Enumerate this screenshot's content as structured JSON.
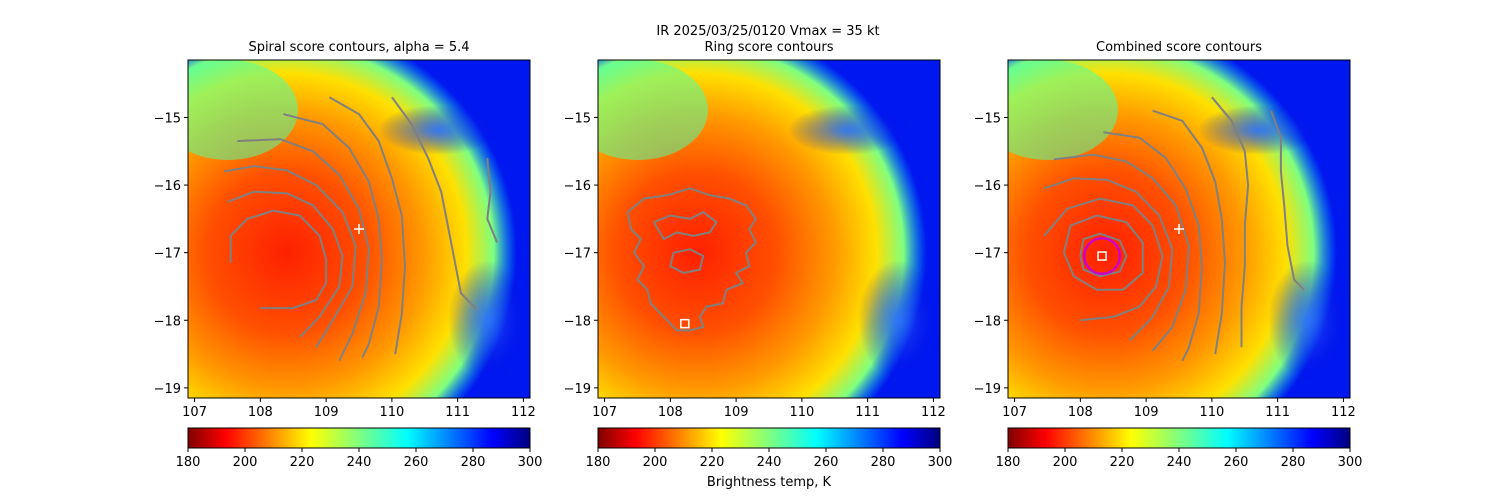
{
  "suptitle_line1": "IR  2025/03/25/0120    Vmax = 35 kt",
  "colorbar_label": "Brightness temp, K",
  "colormap": "jet_r",
  "contour_color": "#808080",
  "marker_colors": {
    "center_square": "#ffffff",
    "ring_circle": "#cc00cc",
    "plus": "#ffffff"
  },
  "chart_data": [
    {
      "type": "heatmap",
      "title": "Spiral score contours, alpha =  5.4",
      "xlim": [
        106.9,
        112.1
      ],
      "ylim": [
        -19.15,
        -14.15
      ],
      "xticks": [
        "107",
        "108",
        "109",
        "110",
        "111",
        "112"
      ],
      "yticks": [
        "−15",
        "−16",
        "−17",
        "−18",
        "−19"
      ],
      "xtick_values": [
        107,
        108,
        109,
        110,
        111,
        112
      ],
      "ytick_values": [
        -15,
        -16,
        -17,
        -18,
        -19
      ],
      "colorbar": {
        "ticks": [
          "180",
          "200",
          "220",
          "240",
          "260",
          "280",
          "300"
        ],
        "range": [
          180,
          300
        ]
      },
      "markers": [
        {
          "kind": "plus",
          "lon": 109.5,
          "lat": -16.65
        }
      ],
      "contours": [
        [
          [
            107.55,
            -17.15
          ],
          [
            107.55,
            -16.75
          ],
          [
            107.8,
            -16.5
          ],
          [
            108.2,
            -16.38
          ],
          [
            108.6,
            -16.45
          ],
          [
            108.9,
            -16.75
          ],
          [
            109.0,
            -17.1
          ],
          [
            109.0,
            -17.45
          ],
          [
            108.85,
            -17.7
          ],
          [
            108.5,
            -17.82
          ],
          [
            108.0,
            -17.82
          ]
        ],
        [
          [
            107.5,
            -16.25
          ],
          [
            107.9,
            -16.1
          ],
          [
            108.4,
            -16.12
          ],
          [
            108.8,
            -16.3
          ],
          [
            109.1,
            -16.65
          ],
          [
            109.25,
            -17.05
          ],
          [
            109.2,
            -17.5
          ],
          [
            108.9,
            -17.95
          ],
          [
            108.6,
            -18.25
          ]
        ],
        [
          [
            107.45,
            -15.8
          ],
          [
            107.9,
            -15.72
          ],
          [
            108.4,
            -15.78
          ],
          [
            108.85,
            -16.0
          ],
          [
            109.25,
            -16.4
          ],
          [
            109.45,
            -16.9
          ],
          [
            109.4,
            -17.5
          ],
          [
            109.1,
            -18.0
          ],
          [
            108.85,
            -18.4
          ]
        ],
        [
          [
            107.65,
            -15.35
          ],
          [
            108.3,
            -15.32
          ],
          [
            108.8,
            -15.5
          ],
          [
            109.2,
            -15.85
          ],
          [
            109.5,
            -16.35
          ],
          [
            109.65,
            -16.95
          ],
          [
            109.6,
            -17.6
          ],
          [
            109.4,
            -18.2
          ],
          [
            109.2,
            -18.6
          ]
        ],
        [
          [
            108.35,
            -14.95
          ],
          [
            108.95,
            -15.1
          ],
          [
            109.35,
            -15.45
          ],
          [
            109.65,
            -15.95
          ],
          [
            109.8,
            -16.5
          ],
          [
            109.85,
            -17.1
          ],
          [
            109.8,
            -17.8
          ],
          [
            109.65,
            -18.35
          ],
          [
            109.55,
            -18.55
          ]
        ],
        [
          [
            109.05,
            -14.7
          ],
          [
            109.5,
            -14.95
          ],
          [
            109.8,
            -15.35
          ],
          [
            110.0,
            -15.9
          ],
          [
            110.15,
            -16.45
          ],
          [
            110.2,
            -17.2
          ],
          [
            110.15,
            -17.9
          ],
          [
            110.05,
            -18.5
          ]
        ],
        [
          [
            110.0,
            -14.7
          ],
          [
            110.3,
            -15.1
          ],
          [
            110.55,
            -15.6
          ],
          [
            110.75,
            -16.1
          ],
          [
            110.85,
            -16.6
          ],
          [
            110.95,
            -17.1
          ],
          [
            111.05,
            -17.6
          ],
          [
            111.3,
            -17.85
          ]
        ],
        [
          [
            111.45,
            -15.6
          ],
          [
            111.5,
            -16.1
          ],
          [
            111.45,
            -16.5
          ],
          [
            111.6,
            -16.85
          ]
        ]
      ]
    },
    {
      "type": "heatmap",
      "title": "Ring score contours",
      "xlim": [
        106.9,
        112.1
      ],
      "ylim": [
        -19.15,
        -14.15
      ],
      "xticks": [
        "107",
        "108",
        "109",
        "110",
        "111",
        "112"
      ],
      "yticks": [
        "−15",
        "−16",
        "−17",
        "−18",
        "−19"
      ],
      "xtick_values": [
        107,
        108,
        109,
        110,
        111,
        112
      ],
      "ytick_values": [
        -15,
        -16,
        -17,
        -18,
        -19
      ],
      "colorbar": {
        "ticks": [
          "180",
          "200",
          "220",
          "240",
          "260",
          "280",
          "300"
        ],
        "range": [
          180,
          300
        ]
      },
      "markers": [
        {
          "kind": "square",
          "lon": 108.22,
          "lat": -18.05
        }
      ],
      "contours": [
        [
          [
            107.35,
            -16.4
          ],
          [
            107.6,
            -16.2
          ],
          [
            107.95,
            -16.15
          ],
          [
            108.3,
            -16.05
          ],
          [
            108.6,
            -16.15
          ],
          [
            108.9,
            -16.2
          ],
          [
            109.15,
            -16.3
          ],
          [
            109.3,
            -16.5
          ],
          [
            109.2,
            -16.65
          ],
          [
            109.3,
            -16.85
          ],
          [
            109.15,
            -17.0
          ],
          [
            109.2,
            -17.2
          ],
          [
            109.0,
            -17.3
          ],
          [
            109.1,
            -17.45
          ],
          [
            108.85,
            -17.55
          ],
          [
            108.8,
            -17.75
          ],
          [
            108.55,
            -17.8
          ],
          [
            108.45,
            -17.95
          ],
          [
            108.5,
            -18.1
          ],
          [
            108.3,
            -18.15
          ],
          [
            108.1,
            -18.15
          ],
          [
            107.95,
            -18.0
          ],
          [
            107.85,
            -17.9
          ],
          [
            107.7,
            -17.75
          ],
          [
            107.65,
            -17.55
          ],
          [
            107.5,
            -17.4
          ],
          [
            107.6,
            -17.2
          ],
          [
            107.45,
            -17.0
          ],
          [
            107.55,
            -16.8
          ],
          [
            107.4,
            -16.65
          ],
          [
            107.35,
            -16.4
          ]
        ],
        [
          [
            107.75,
            -16.55
          ],
          [
            108.0,
            -16.45
          ],
          [
            108.3,
            -16.5
          ],
          [
            108.5,
            -16.4
          ],
          [
            108.7,
            -16.55
          ],
          [
            108.6,
            -16.7
          ],
          [
            108.35,
            -16.75
          ],
          [
            108.1,
            -16.7
          ],
          [
            107.9,
            -16.8
          ],
          [
            107.75,
            -16.55
          ]
        ],
        [
          [
            108.05,
            -17.0
          ],
          [
            108.3,
            -16.95
          ],
          [
            108.5,
            -17.05
          ],
          [
            108.45,
            -17.25
          ],
          [
            108.2,
            -17.3
          ],
          [
            108.0,
            -17.2
          ],
          [
            108.05,
            -17.0
          ]
        ]
      ]
    },
    {
      "type": "heatmap",
      "title": "Combined score contours",
      "xlim": [
        106.9,
        112.1
      ],
      "ylim": [
        -19.15,
        -14.15
      ],
      "xticks": [
        "107",
        "108",
        "109",
        "110",
        "111",
        "112"
      ],
      "yticks": [
        "−15",
        "−16",
        "−17",
        "−18",
        "−19"
      ],
      "xtick_values": [
        107,
        108,
        109,
        110,
        111,
        112
      ],
      "ytick_values": [
        -15,
        -16,
        -17,
        -18,
        -19
      ],
      "colorbar": {
        "ticks": [
          "180",
          "200",
          "220",
          "240",
          "260",
          "280",
          "300"
        ],
        "range": [
          180,
          300
        ]
      },
      "markers": [
        {
          "kind": "plus",
          "lon": 109.5,
          "lat": -16.65
        },
        {
          "kind": "circle",
          "lon": 108.33,
          "lat": -17.05,
          "radius_deg": 0.27
        },
        {
          "kind": "square",
          "lon": 108.33,
          "lat": -17.05
        }
      ],
      "contours": [
        [
          [
            108.0,
            -17.05
          ],
          [
            108.05,
            -16.8
          ],
          [
            108.3,
            -16.72
          ],
          [
            108.6,
            -16.82
          ],
          [
            108.7,
            -17.05
          ],
          [
            108.6,
            -17.28
          ],
          [
            108.3,
            -17.35
          ],
          [
            108.05,
            -17.25
          ],
          [
            108.0,
            -17.05
          ]
        ],
        [
          [
            107.75,
            -17.0
          ],
          [
            107.85,
            -16.6
          ],
          [
            108.25,
            -16.45
          ],
          [
            108.7,
            -16.55
          ],
          [
            108.95,
            -16.85
          ],
          [
            108.95,
            -17.3
          ],
          [
            108.65,
            -17.55
          ],
          [
            108.25,
            -17.55
          ],
          [
            107.9,
            -17.35
          ],
          [
            107.75,
            -17.0
          ]
        ],
        [
          [
            107.45,
            -16.75
          ],
          [
            107.8,
            -16.35
          ],
          [
            108.3,
            -16.2
          ],
          [
            108.8,
            -16.3
          ],
          [
            109.1,
            -16.6
          ],
          [
            109.25,
            -17.05
          ],
          [
            109.15,
            -17.5
          ],
          [
            108.9,
            -17.8
          ],
          [
            108.5,
            -17.95
          ],
          [
            108.0,
            -18.0
          ]
        ],
        [
          [
            107.45,
            -16.05
          ],
          [
            107.9,
            -15.9
          ],
          [
            108.4,
            -15.92
          ],
          [
            108.85,
            -16.1
          ],
          [
            109.2,
            -16.45
          ],
          [
            109.4,
            -16.95
          ],
          [
            109.35,
            -17.5
          ],
          [
            109.1,
            -17.95
          ],
          [
            108.75,
            -18.3
          ]
        ],
        [
          [
            107.6,
            -15.62
          ],
          [
            108.2,
            -15.55
          ],
          [
            108.7,
            -15.65
          ],
          [
            109.1,
            -15.9
          ],
          [
            109.45,
            -16.3
          ],
          [
            109.65,
            -16.9
          ],
          [
            109.6,
            -17.55
          ],
          [
            109.4,
            -18.1
          ],
          [
            109.1,
            -18.45
          ]
        ],
        [
          [
            108.35,
            -15.22
          ],
          [
            108.9,
            -15.3
          ],
          [
            109.3,
            -15.6
          ],
          [
            109.6,
            -16.05
          ],
          [
            109.8,
            -16.6
          ],
          [
            109.85,
            -17.2
          ],
          [
            109.8,
            -17.9
          ],
          [
            109.65,
            -18.4
          ],
          [
            109.55,
            -18.6
          ]
        ],
        [
          [
            109.1,
            -14.9
          ],
          [
            109.55,
            -15.05
          ],
          [
            109.85,
            -15.45
          ],
          [
            110.05,
            -15.95
          ],
          [
            110.15,
            -16.5
          ],
          [
            110.2,
            -17.15
          ],
          [
            110.15,
            -17.9
          ],
          [
            110.05,
            -18.5
          ]
        ],
        [
          [
            110.0,
            -14.7
          ],
          [
            110.3,
            -15.05
          ],
          [
            110.5,
            -15.5
          ],
          [
            110.55,
            -16.0
          ],
          [
            110.5,
            -16.6
          ],
          [
            110.5,
            -17.2
          ],
          [
            110.45,
            -17.8
          ],
          [
            110.45,
            -18.4
          ]
        ],
        [
          [
            110.9,
            -14.9
          ],
          [
            111.05,
            -15.3
          ],
          [
            111.05,
            -15.8
          ],
          [
            111.1,
            -16.3
          ],
          [
            111.15,
            -16.9
          ],
          [
            111.25,
            -17.4
          ],
          [
            111.4,
            -17.55
          ]
        ]
      ]
    }
  ]
}
